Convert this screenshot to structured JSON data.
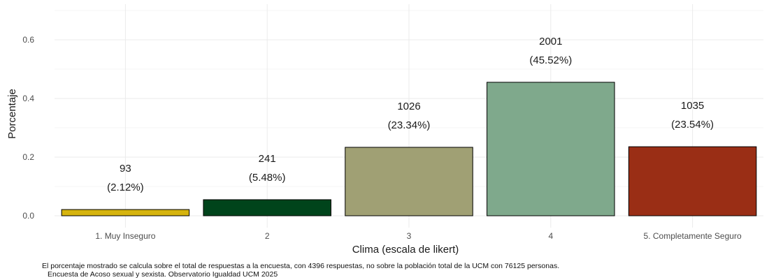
{
  "chart_data": {
    "type": "bar",
    "categories": [
      "1. Muy Inseguro",
      "2",
      "3",
      "4",
      "5. Completamente Seguro"
    ],
    "values": [
      0.0212,
      0.0548,
      0.2334,
      0.4552,
      0.2354
    ],
    "counts": [
      "93",
      "241",
      "1026",
      "2001",
      "1035"
    ],
    "percent_labels": [
      "(2.12%)",
      "(5.48%)",
      "(23.34%)",
      "(45.52%)",
      "(23.54%)"
    ],
    "colors": [
      "#D6B40E",
      "#00441B",
      "#A0A074",
      "#7FA98C",
      "#9A2E15"
    ],
    "xlabel": "Clima (escala de likert)",
    "ylabel": "Porcentaje",
    "ylim": [
      0,
      0.7
    ],
    "yticks": [
      "0.0",
      "0.2",
      "0.4",
      "0.6"
    ],
    "ytick_values": [
      0,
      0.2,
      0.4,
      0.6
    ],
    "grid": true
  },
  "caption": {
    "line1": "El porcentaje mostrado se calcula sobre el total de respuestas a la encuesta, con 4396 respuestas, no sobre la población total de la UCM con 76125 personas.",
    "line2": "Encuesta de Acoso sexual y sexista. Observatorio Igualdad UCM 2025"
  }
}
